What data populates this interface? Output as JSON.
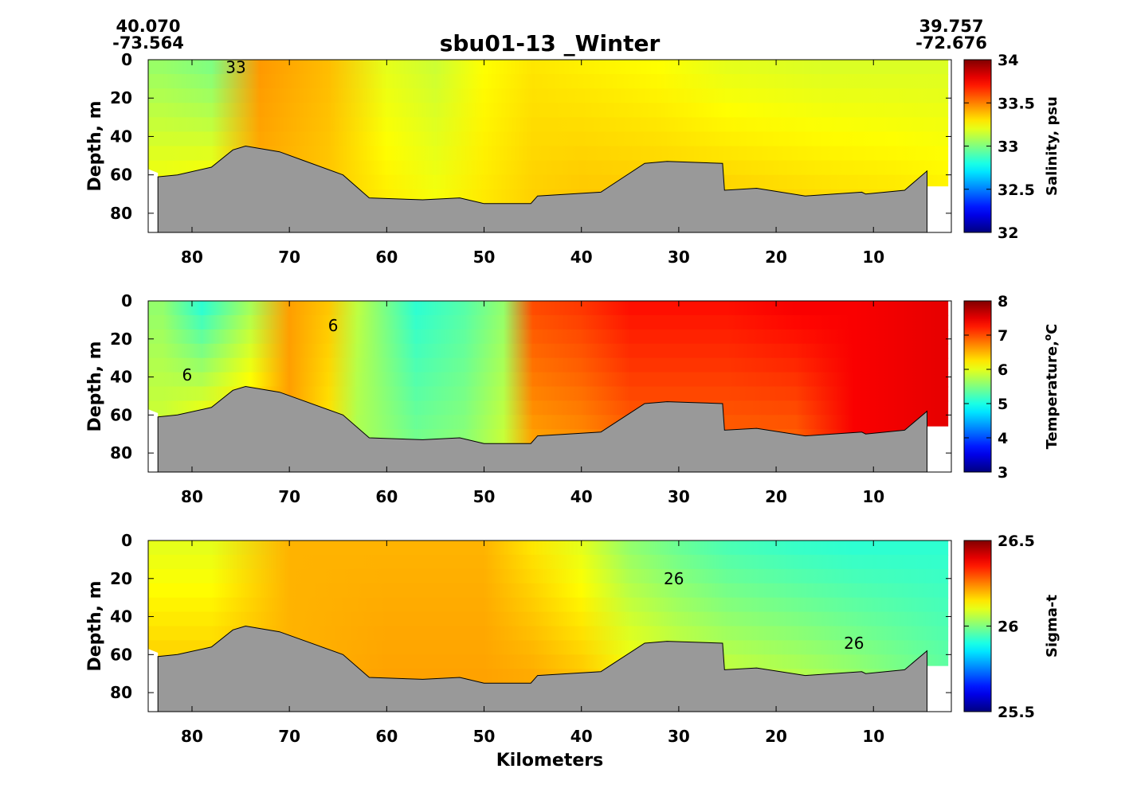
{
  "chart_data": {
    "type": "heatmap",
    "title": "sbu01-13 _Winter",
    "start_position": {
      "lat": "40.070",
      "lon": "-73.564"
    },
    "end_position": {
      "lat": "39.757",
      "lon": "-72.676"
    },
    "xlabel": "Kilometers",
    "x_axis_reversed": true,
    "xlim": [
      84.5,
      2
    ],
    "x_ticks": [
      80,
      70,
      60,
      50,
      40,
      30,
      20,
      10
    ],
    "bathymetry": {
      "km": [
        83.5,
        81.5,
        78,
        75.8,
        74.5,
        71,
        64.5,
        61.8,
        56.3,
        52.5,
        50,
        45.2,
        44.5,
        38,
        33.5,
        31.2,
        25.5,
        25.3,
        22,
        17,
        11.2,
        10.8,
        6.8,
        4.5
      ],
      "depth_m": [
        61,
        60,
        56,
        47,
        45,
        48,
        60,
        72,
        73,
        72,
        75,
        75,
        71,
        69,
        54,
        53,
        54,
        68,
        67,
        71,
        69,
        70,
        68,
        58
      ]
    },
    "panels": [
      {
        "name": "salinity",
        "ylabel": "Depth, m",
        "ylim": [
          90,
          0
        ],
        "y_ticks": [
          0,
          20,
          40,
          60,
          80
        ],
        "colorbar_label": "Salinity, psu",
        "colorbar_range": [
          32,
          34
        ],
        "colorbar_ticks": [
          "32",
          "32.5",
          "33",
          "33.5",
          "34"
        ],
        "contour_labels": [
          {
            "text": "33",
            "km": 75.5,
            "depth": 4
          }
        ],
        "columns": [
          {
            "km": 83,
            "surface": 33.05,
            "bottom": 33.3
          },
          {
            "km": 78,
            "surface": 33.0,
            "bottom": 33.35
          },
          {
            "km": 73,
            "surface": 33.45,
            "bottom": 33.4
          },
          {
            "km": 66,
            "surface": 33.38,
            "bottom": 33.35
          },
          {
            "km": 60,
            "surface": 33.2,
            "bottom": 33.3
          },
          {
            "km": 55,
            "surface": 33.15,
            "bottom": 33.25
          },
          {
            "km": 50,
            "surface": 33.25,
            "bottom": 33.3
          },
          {
            "km": 45,
            "surface": 33.3,
            "bottom": 33.35
          },
          {
            "km": 40,
            "surface": 33.28,
            "bottom": 33.38
          },
          {
            "km": 32,
            "surface": 33.25,
            "bottom": 33.38
          },
          {
            "km": 25,
            "surface": 33.2,
            "bottom": 33.38
          },
          {
            "km": 15,
            "surface": 33.18,
            "bottom": 33.35
          },
          {
            "km": 8,
            "surface": 33.18,
            "bottom": 33.33
          },
          {
            "km": 2,
            "surface": 33.18,
            "bottom": 33.3
          }
        ]
      },
      {
        "name": "temperature",
        "ylabel": "Depth, m",
        "ylim": [
          90,
          0
        ],
        "y_ticks": [
          0,
          20,
          40,
          60,
          80
        ],
        "colorbar_label": "Temperature,",
        "colorbar_unit": "C",
        "colorbar_range": [
          3,
          8
        ],
        "colorbar_ticks": [
          "3",
          "4",
          "5",
          "6",
          "7",
          "8"
        ],
        "contour_labels": [
          {
            "text": "6",
            "km": 65.5,
            "depth": 13
          },
          {
            "text": "6",
            "km": 80.5,
            "depth": 39
          }
        ],
        "columns": [
          {
            "km": 83,
            "surface": 5.6,
            "bottom": 6.0
          },
          {
            "km": 79,
            "surface": 5.1,
            "bottom": 6.5
          },
          {
            "km": 74,
            "surface": 5.7,
            "bottom": 6.6
          },
          {
            "km": 70,
            "surface": 6.6,
            "bottom": 6.6
          },
          {
            "km": 66,
            "surface": 6.4,
            "bottom": 6.2
          },
          {
            "km": 63,
            "surface": 5.8,
            "bottom": 5.7
          },
          {
            "km": 57,
            "surface": 5.1,
            "bottom": 5.5
          },
          {
            "km": 52,
            "surface": 5.3,
            "bottom": 5.6
          },
          {
            "km": 48,
            "surface": 5.6,
            "bottom": 5.9
          },
          {
            "km": 45,
            "surface": 7.0,
            "bottom": 6.5
          },
          {
            "km": 40,
            "surface": 7.1,
            "bottom": 6.6
          },
          {
            "km": 35,
            "surface": 7.3,
            "bottom": 6.8
          },
          {
            "km": 25,
            "surface": 7.3,
            "bottom": 6.8
          },
          {
            "km": 18,
            "surface": 7.4,
            "bottom": 6.8
          },
          {
            "km": 12,
            "surface": 7.4,
            "bottom": 7.4
          },
          {
            "km": 2,
            "surface": 7.5,
            "bottom": 7.5
          }
        ]
      },
      {
        "name": "sigma_t",
        "ylabel": "Depth, m",
        "ylim": [
          90,
          0
        ],
        "y_ticks": [
          0,
          20,
          40,
          60,
          80
        ],
        "colorbar_label": "Sigma-t",
        "colorbar_range": [
          25.5,
          26.5
        ],
        "colorbar_ticks": [
          "25.5",
          "26",
          "26.5"
        ],
        "contour_labels": [
          {
            "text": "26",
            "km": 30.5,
            "depth": 20
          },
          {
            "text": "26",
            "km": 12,
            "depth": 54
          }
        ],
        "columns": [
          {
            "km": 83,
            "surface": 26.1,
            "bottom": 26.2
          },
          {
            "km": 78,
            "surface": 26.1,
            "bottom": 26.2
          },
          {
            "km": 70,
            "surface": 26.2,
            "bottom": 26.2
          },
          {
            "km": 60,
            "surface": 26.2,
            "bottom": 26.22
          },
          {
            "km": 50,
            "surface": 26.2,
            "bottom": 26.22
          },
          {
            "km": 45,
            "surface": 26.15,
            "bottom": 26.22
          },
          {
            "km": 40,
            "surface": 26.1,
            "bottom": 26.2
          },
          {
            "km": 35,
            "surface": 26.02,
            "bottom": 26.15
          },
          {
            "km": 30,
            "surface": 25.98,
            "bottom": 26.12
          },
          {
            "km": 25,
            "surface": 25.95,
            "bottom": 26.1
          },
          {
            "km": 18,
            "surface": 25.93,
            "bottom": 26.08
          },
          {
            "km": 12,
            "surface": 25.92,
            "bottom": 26.05
          },
          {
            "km": 2,
            "surface": 25.92,
            "bottom": 25.98
          }
        ]
      }
    ]
  }
}
